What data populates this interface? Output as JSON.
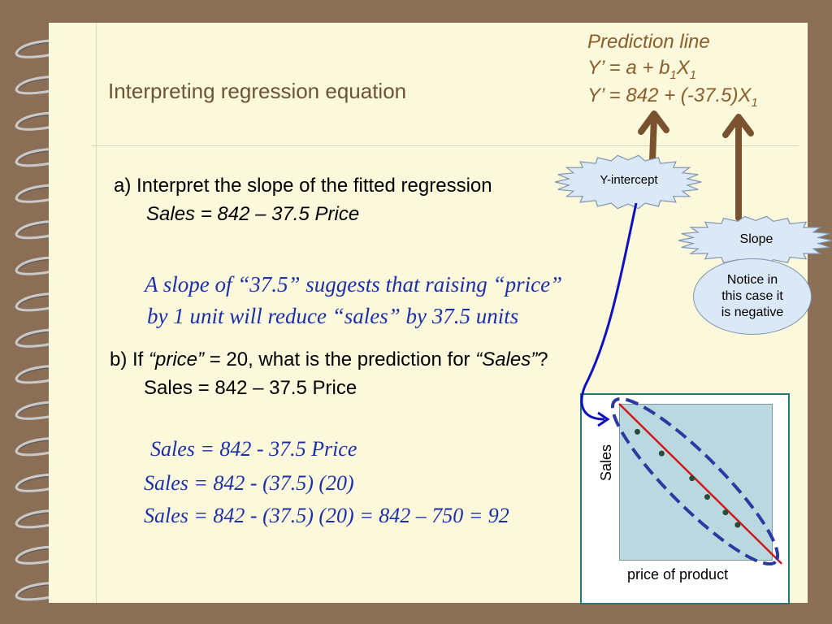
{
  "title": "Interpreting regression equation",
  "prediction": {
    "heading": "Prediction line",
    "general_prefix": "Y’ = a + b",
    "general_sub1": "1",
    "general_x": "X",
    "general_sub2": "1",
    "specific_prefix": "Y’ = 842 + (-37.5)X",
    "specific_sub": "1"
  },
  "callouts": {
    "intercept": "Y-intercept",
    "slope": "Slope",
    "notice_line1": "Notice in",
    "notice_line2": "this case it",
    "notice_line3": "is negative"
  },
  "part_a": {
    "question": "a) Interpret the slope of the fitted regression",
    "equation": "Sales = 842 – 37.5 Price",
    "answer_line1": "A slope of “37.5” suggests that raising “price”",
    "answer_line2": "by 1 unit will reduce “sales” by 37.5 units"
  },
  "part_b": {
    "q_prefix": "b) If ",
    "q_price": "“price”",
    "q_mid": " = 20, what is the prediction for ",
    "q_sales": "“Sales”",
    "q_end": "?",
    "equation": "Sales = 842 – 37.5 Price",
    "calc1": "Sales = 842 - 37.5 Price",
    "calc2": "Sales = 842  - (37.5) (20)",
    "calc3": "Sales = 842  - (37.5) (20) = 842 – 750 = 92"
  },
  "plot": {
    "ylabel": "Sales",
    "xlabel": "price of product",
    "line_color": "#d01818",
    "point_color": "#2a4a3a",
    "ellipse_color": "#2a3aa0"
  },
  "chart_data": {
    "type": "scatter",
    "title": "",
    "xlabel": "price of product",
    "ylabel": "Sales",
    "x": [
      0.12,
      0.28,
      0.48,
      0.58,
      0.7,
      0.78
    ],
    "y": [
      0.82,
      0.68,
      0.52,
      0.4,
      0.3,
      0.22
    ],
    "trendline": true
  }
}
